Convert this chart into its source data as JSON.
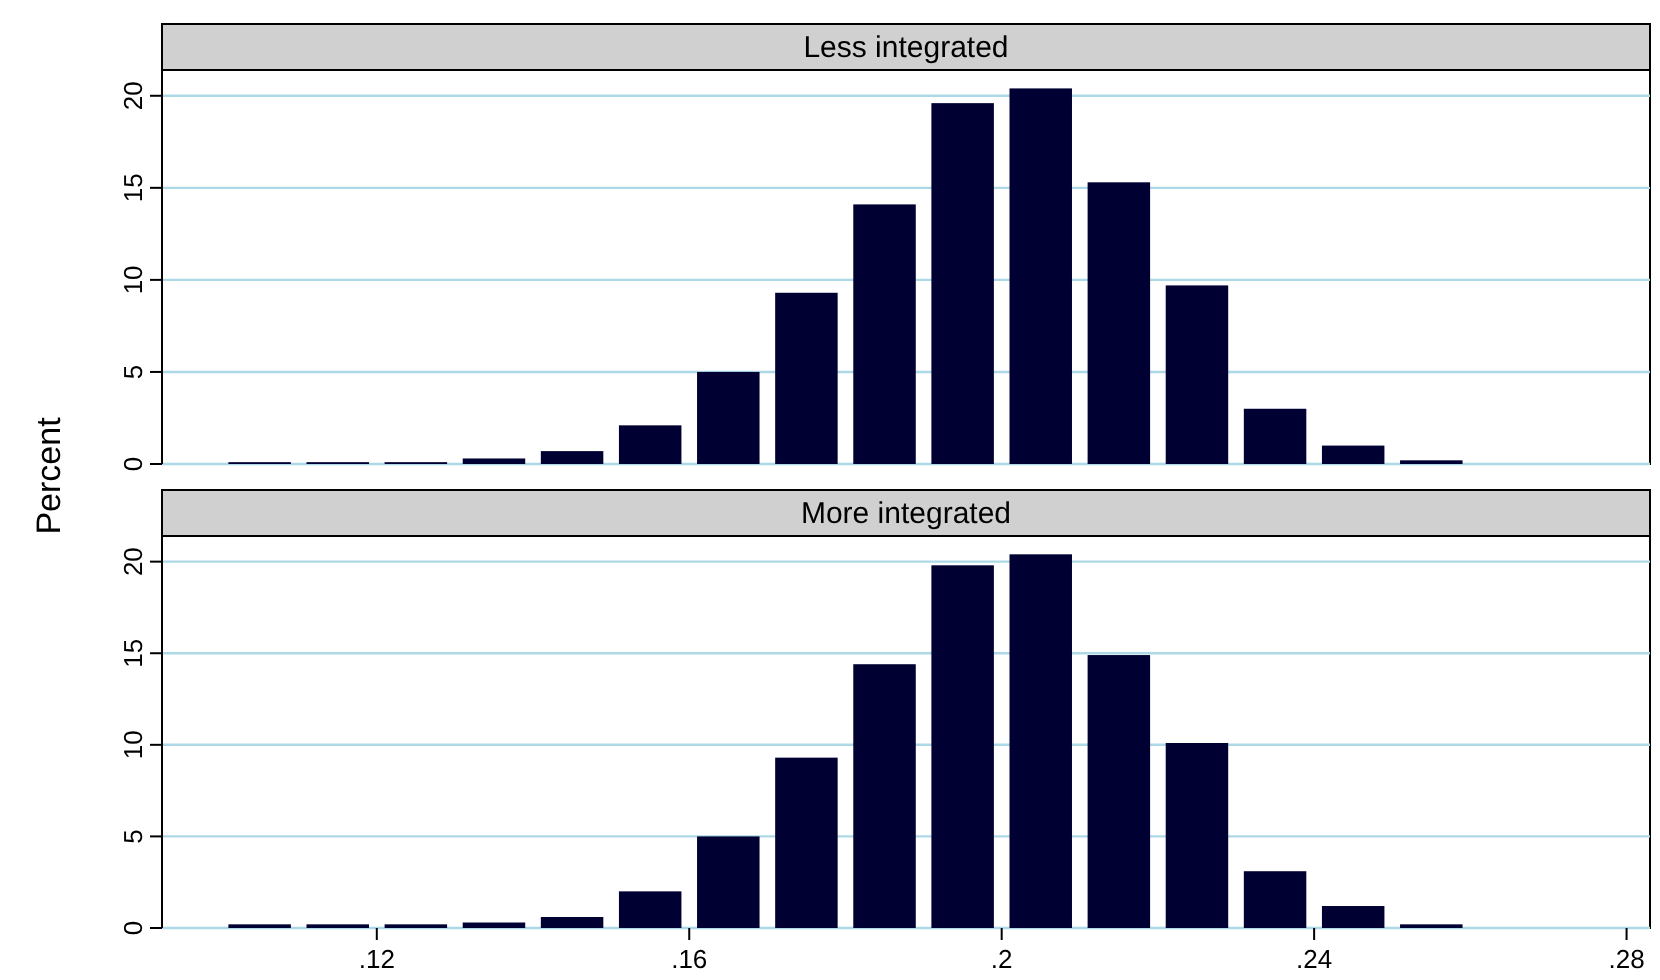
{
  "chart_data": [
    {
      "type": "histogram",
      "title": "Less integrated",
      "ylabel": "Percent",
      "color": "#000033",
      "grid": "y",
      "tick_labels": "y",
      "bins": [
        0.1,
        0.11,
        0.12,
        0.13,
        0.14,
        0.15,
        0.16,
        0.17,
        0.18,
        0.19,
        0.2,
        0.21,
        0.22,
        0.23,
        0.24,
        0.25,
        0.26
      ],
      "values": [
        0.1,
        0.1,
        0.1,
        0.3,
        0.7,
        2.1,
        5.0,
        9.3,
        14.1,
        19.6,
        20.4,
        15.3,
        9.7,
        3.0,
        1.0,
        0.2
      ],
      "xlim": [
        0.0925,
        0.283
      ],
      "ylim": [
        0,
        21.4
      ],
      "yticks": [
        0,
        5,
        10,
        15,
        20
      ]
    },
    {
      "type": "histogram",
      "title": "More integrated",
      "color": "#000033",
      "grid": "y",
      "bins": [
        0.1,
        0.11,
        0.12,
        0.13,
        0.14,
        0.15,
        0.16,
        0.17,
        0.18,
        0.19,
        0.2,
        0.21,
        0.22,
        0.23,
        0.24,
        0.25,
        0.26
      ],
      "values": [
        0.2,
        0.2,
        0.2,
        0.3,
        0.6,
        2.0,
        5.0,
        9.3,
        14.4,
        19.8,
        20.4,
        14.9,
        10.1,
        3.1,
        1.2,
        0.2
      ],
      "xlim": [
        0.0925,
        0.283
      ],
      "xticks": [
        {
          "value": 0.12,
          "label": ".12"
        },
        {
          "value": 0.16,
          "label": ".16"
        },
        {
          "value": 0.2,
          "label": ".2"
        },
        {
          "value": 0.24,
          "label": ".24"
        },
        {
          "value": 0.28,
          "label": ".28"
        }
      ],
      "ylim": [
        0,
        21.4
      ],
      "yticks": [
        0,
        5,
        10,
        15,
        20
      ]
    }
  ]
}
